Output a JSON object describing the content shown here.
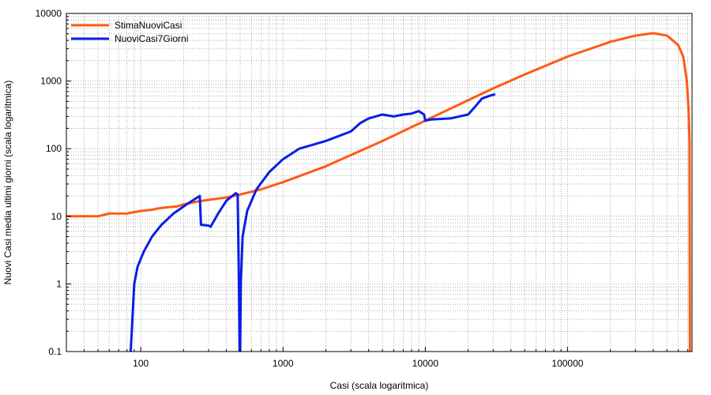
{
  "chart_data": {
    "type": "line",
    "xlabel": "Casi (scala logaritmica)",
    "ylabel": "Nuovi Casi media ultimi giorni (scala logaritmica)",
    "x_scale": "log",
    "y_scale": "log",
    "xlim": [
      30,
      750000
    ],
    "ylim": [
      0.1,
      10000
    ],
    "grid": true,
    "legend_position": "top-left",
    "x_ticks": [
      100,
      1000,
      10000,
      100000
    ],
    "x_tick_labels": [
      "100",
      "1000",
      "10000",
      "100000"
    ],
    "y_ticks": [
      0.1,
      1,
      10,
      100,
      1000,
      10000
    ],
    "y_tick_labels": [
      "0.1",
      "1",
      "10",
      "100",
      "1000",
      "10000"
    ],
    "series": [
      {
        "name": "StimaNuoviCasi",
        "color": "#ff5a14",
        "points": [
          [
            30,
            10
          ],
          [
            50,
            10
          ],
          [
            60,
            11
          ],
          [
            80,
            11
          ],
          [
            100,
            12
          ],
          [
            120,
            12.5
          ],
          [
            130,
            13
          ],
          [
            150,
            13.5
          ],
          [
            180,
            14
          ],
          [
            200,
            15
          ],
          [
            250,
            16.5
          ],
          [
            300,
            17.5
          ],
          [
            400,
            19
          ],
          [
            500,
            21
          ],
          [
            700,
            25
          ],
          [
            1000,
            32
          ],
          [
            2000,
            55
          ],
          [
            5000,
            130
          ],
          [
            10000,
            260
          ],
          [
            20000,
            520
          ],
          [
            30000,
            780
          ],
          [
            50000,
            1250
          ],
          [
            100000,
            2300
          ],
          [
            200000,
            3800
          ],
          [
            300000,
            4700
          ],
          [
            400000,
            5100
          ],
          [
            500000,
            4700
          ],
          [
            600000,
            3400
          ],
          [
            650000,
            2300
          ],
          [
            690000,
            1000
          ],
          [
            710000,
            350
          ],
          [
            720000,
            130
          ],
          [
            725000,
            0.1
          ]
        ]
      },
      {
        "name": "NuoviCasi7Giorni",
        "color": "#0a1ee6",
        "points": [
          [
            85,
            0.1
          ],
          [
            90,
            1
          ],
          [
            95,
            1.8
          ],
          [
            105,
            3
          ],
          [
            120,
            5
          ],
          [
            140,
            7.5
          ],
          [
            170,
            11
          ],
          [
            210,
            15
          ],
          [
            260,
            20
          ],
          [
            265,
            7.5
          ],
          [
            300,
            7.3
          ],
          [
            310,
            7
          ],
          [
            350,
            11
          ],
          [
            400,
            17
          ],
          [
            440,
            20
          ],
          [
            465,
            22
          ],
          [
            480,
            21
          ],
          [
            490,
            1
          ],
          [
            495,
            0.1
          ],
          [
            500,
            0.1
          ],
          [
            505,
            1
          ],
          [
            520,
            5
          ],
          [
            560,
            12
          ],
          [
            650,
            25
          ],
          [
            800,
            45
          ],
          [
            1000,
            70
          ],
          [
            1300,
            100
          ],
          [
            2000,
            130
          ],
          [
            3000,
            180
          ],
          [
            3500,
            240
          ],
          [
            4000,
            280
          ],
          [
            5000,
            320
          ],
          [
            6000,
            300
          ],
          [
            7000,
            320
          ],
          [
            8000,
            330
          ],
          [
            9000,
            360
          ],
          [
            9800,
            320
          ],
          [
            10000,
            260
          ],
          [
            11000,
            270
          ],
          [
            15000,
            280
          ],
          [
            20000,
            320
          ],
          [
            22000,
            400
          ],
          [
            25000,
            550
          ],
          [
            28000,
            600
          ],
          [
            31000,
            640
          ]
        ]
      }
    ]
  }
}
